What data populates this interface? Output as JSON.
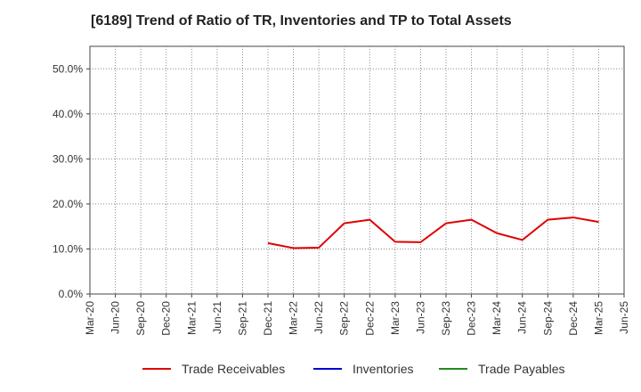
{
  "title": "[6189]  Trend of Ratio of TR, Inventories and TP to Total Assets",
  "chart_data": {
    "type": "line",
    "x": [
      "Mar-20",
      "Jun-20",
      "Sep-20",
      "Dec-20",
      "Mar-21",
      "Jun-21",
      "Sep-21",
      "Dec-21",
      "Mar-22",
      "Jun-22",
      "Sep-22",
      "Dec-22",
      "Mar-23",
      "Jun-23",
      "Sep-23",
      "Dec-23",
      "Mar-24",
      "Jun-24",
      "Sep-24",
      "Dec-24",
      "Mar-25",
      "Jun-25"
    ],
    "y_ticks": [
      "0.0%",
      "10.0%",
      "20.0%",
      "30.0%",
      "40.0%",
      "50.0%"
    ],
    "ylim": [
      0,
      55
    ],
    "grid": true,
    "legend_position": "bottom",
    "series": [
      {
        "name": "Trade Receivables",
        "color": "#e00000",
        "values": [
          null,
          null,
          null,
          null,
          null,
          null,
          null,
          11.3,
          10.2,
          10.3,
          15.7,
          16.5,
          11.6,
          11.5,
          15.7,
          16.5,
          13.5,
          12.0,
          16.5,
          17.0,
          16.0,
          null
        ]
      },
      {
        "name": "Inventories",
        "color": "#0000cc",
        "values": [
          null,
          null,
          null,
          null,
          null,
          null,
          null,
          null,
          null,
          null,
          null,
          null,
          null,
          null,
          null,
          null,
          null,
          null,
          null,
          null,
          null,
          null
        ]
      },
      {
        "name": "Trade Payables",
        "color": "#228b22",
        "values": [
          null,
          null,
          null,
          null,
          null,
          null,
          null,
          null,
          null,
          null,
          null,
          null,
          null,
          null,
          null,
          null,
          null,
          null,
          null,
          null,
          null,
          null
        ]
      }
    ]
  }
}
